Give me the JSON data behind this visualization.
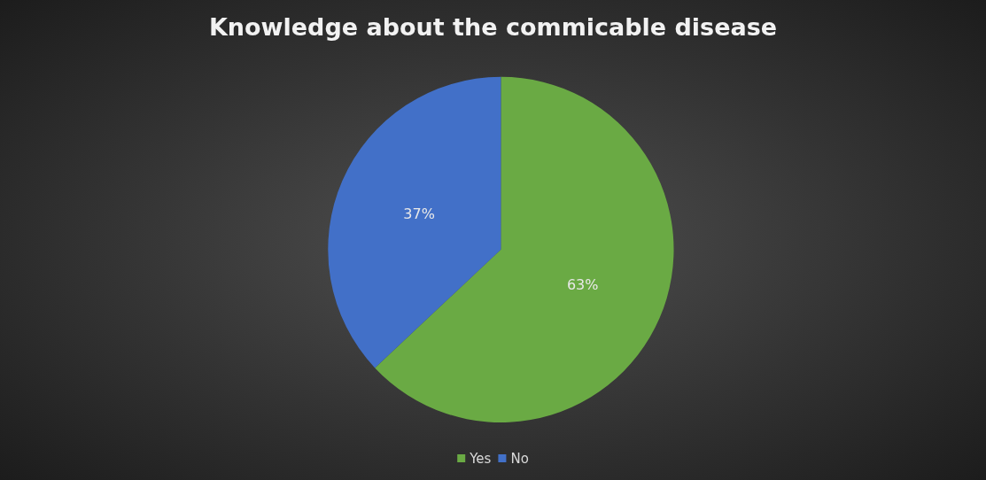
{
  "chart_data": {
    "type": "pie",
    "title": "Knowledge about the commicable disease",
    "categories": [
      "Yes",
      "No"
    ],
    "values": [
      63,
      37
    ],
    "colors": [
      "#6aaa44",
      "#4270c8"
    ],
    "value_labels": [
      "63%",
      "37%"
    ],
    "legend": "bottom"
  }
}
